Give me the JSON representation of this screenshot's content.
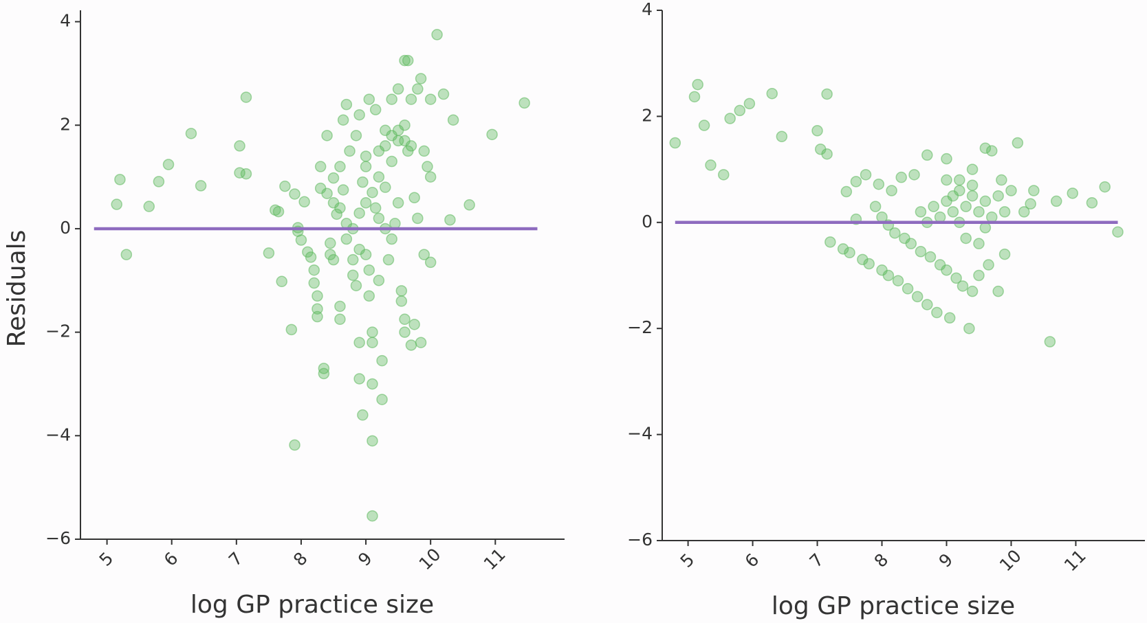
{
  "chart_data": [
    {
      "type": "scatter",
      "xlabel": "log GP practice size",
      "ylabel": "Residuals",
      "xlim": [
        4.59,
        12.07
      ],
      "ylim": [
        -6,
        4.22
      ],
      "xticks": [
        5,
        6,
        7,
        8,
        9,
        10,
        11
      ],
      "yticks": [
        {
          "value": -6,
          "label": "−6"
        },
        {
          "value": -4,
          "label": "−4"
        },
        {
          "value": -2,
          "label": "−2"
        },
        0,
        2,
        4
      ],
      "points": {
        "color": "#5cb85c",
        "x": [
          5.15,
          5.2,
          5.3,
          5.65,
          5.8,
          5.95,
          6.3,
          6.45,
          7.05,
          7.05,
          7.15,
          7.15,
          7.5,
          7.6,
          7.65,
          7.7,
          7.75,
          7.85,
          7.9,
          7.9,
          7.95,
          7.95,
          8.0,
          8.05,
          8.1,
          8.15,
          8.2,
          8.2,
          8.25,
          8.25,
          8.25,
          8.3,
          8.3,
          8.35,
          8.35,
          8.4,
          8.4,
          8.45,
          8.45,
          8.5,
          8.5,
          8.55,
          8.6,
          8.6,
          8.6,
          8.65,
          8.65,
          8.7,
          8.7,
          8.7,
          8.75,
          8.8,
          8.8,
          8.85,
          8.85,
          8.9,
          8.9,
          8.9,
          8.95,
          8.95,
          9.0,
          9.0,
          9.0,
          9.05,
          9.05,
          9.05,
          9.1,
          9.1,
          9.1,
          9.1,
          9.1,
          9.15,
          9.15,
          9.2,
          9.2,
          9.25,
          9.25,
          9.3,
          9.3,
          9.35,
          9.4,
          9.4,
          9.45,
          9.5,
          9.5,
          9.55,
          9.55,
          9.6,
          9.6,
          9.6,
          9.6,
          9.65,
          9.65,
          9.7,
          9.7,
          9.75,
          9.75,
          9.8,
          9.8,
          9.85,
          9.85,
          9.9,
          9.9,
          9.95,
          10.0,
          10.0,
          10.0,
          10.1,
          10.2,
          10.3,
          10.35,
          10.6,
          10.95,
          11.45,
          8.5,
          8.6,
          8.8,
          8.9,
          9.2,
          9.3,
          9.4,
          9.5,
          9.3,
          9.4,
          9.5,
          9.6,
          9.7,
          9.2,
          9.1,
          9.0,
          8.9
        ],
        "y": [
          0.47,
          0.95,
          -0.5,
          0.43,
          0.91,
          1.24,
          1.84,
          0.83,
          1.6,
          1.08,
          2.54,
          1.06,
          -0.47,
          0.36,
          0.33,
          -1.02,
          0.82,
          -1.95,
          -4.18,
          0.67,
          0.02,
          -0.05,
          -0.22,
          0.52,
          -0.45,
          -0.55,
          -0.8,
          -1.05,
          -1.3,
          -1.55,
          -1.7,
          1.2,
          0.78,
          -2.7,
          -2.8,
          1.8,
          0.68,
          -0.28,
          -0.5,
          0.98,
          -0.6,
          0.28,
          1.2,
          -1.5,
          -1.75,
          0.75,
          2.1,
          2.4,
          -0.2,
          0.1,
          1.5,
          -0.6,
          -0.9,
          -1.1,
          1.8,
          2.2,
          -2.2,
          -2.9,
          -3.6,
          0.9,
          1.4,
          -0.5,
          1.2,
          -0.8,
          -1.3,
          2.5,
          -2.0,
          -2.2,
          -3.0,
          -4.1,
          -5.55,
          2.3,
          0.4,
          -1.0,
          1.5,
          -2.55,
          -3.3,
          1.9,
          0.8,
          -0.6,
          1.3,
          2.5,
          0.1,
          1.7,
          2.7,
          -1.2,
          -1.4,
          3.25,
          2.0,
          -1.75,
          -2.0,
          3.25,
          1.5,
          -2.25,
          2.5,
          -1.85,
          0.6,
          2.7,
          0.2,
          2.9,
          -2.2,
          -0.5,
          1.5,
          1.2,
          2.5,
          -0.65,
          1.0,
          3.75,
          2.6,
          0.17,
          2.1,
          0.46,
          1.82,
          2.43,
          0.5,
          0.4,
          0.0,
          -0.4,
          0.2,
          0.0,
          -0.2,
          0.5,
          1.6,
          1.8,
          1.9,
          1.7,
          1.6,
          1.0,
          0.7,
          0.5,
          0.3
        ]
      },
      "line": {
        "color": "#8e6bbf",
        "x": [
          4.8,
          11.65
        ],
        "y": [
          0,
          0
        ]
      }
    },
    {
      "type": "scatter",
      "xlabel": "log GP practice size",
      "xlim": [
        4.6,
        12.07
      ],
      "ylim": [
        -6,
        4
      ],
      "xticks": [
        5,
        6,
        7,
        8,
        9,
        10,
        11
      ],
      "yticks": [
        {
          "value": -6,
          "label": "−6"
        },
        {
          "value": -4,
          "label": "−4"
        },
        {
          "value": -2,
          "label": "−2"
        },
        0,
        2,
        4
      ],
      "points": {
        "color": "#5cb85c",
        "x": [
          4.8,
          5.1,
          5.15,
          5.25,
          5.35,
          5.55,
          5.65,
          5.8,
          5.95,
          6.3,
          6.45,
          7.0,
          7.05,
          7.15,
          7.15,
          7.2,
          7.4,
          7.45,
          7.5,
          7.6,
          7.6,
          7.7,
          7.75,
          7.8,
          7.9,
          7.95,
          8.0,
          8.0,
          8.1,
          8.1,
          8.15,
          8.2,
          8.25,
          8.3,
          8.35,
          8.4,
          8.45,
          8.5,
          8.55,
          8.6,
          8.7,
          8.7,
          8.75,
          8.85,
          8.9,
          9.0,
          9.0,
          9.05,
          9.1,
          9.15,
          9.2,
          9.25,
          9.35,
          9.4,
          9.4,
          9.5,
          9.6,
          9.65,
          9.7,
          9.8,
          9.85,
          9.9,
          10.0,
          10.1,
          10.2,
          10.3,
          10.35,
          10.6,
          10.7,
          10.95,
          11.25,
          11.45,
          11.65,
          8.8,
          8.9,
          9.0,
          9.1,
          9.2,
          9.3,
          9.4,
          9.5,
          9.6,
          9.7,
          9.8,
          8.7,
          9.3,
          9.5,
          9.0,
          9.4,
          9.6,
          9.9,
          8.6,
          9.2
        ],
        "y": [
          1.5,
          2.37,
          2.6,
          1.83,
          1.08,
          0.9,
          1.96,
          2.11,
          2.24,
          2.43,
          1.62,
          1.73,
          1.38,
          2.42,
          1.29,
          -0.37,
          -0.5,
          0.58,
          -0.57,
          0.77,
          0.06,
          -0.7,
          0.9,
          -0.78,
          0.3,
          0.72,
          0.1,
          -0.9,
          -0.05,
          -1.0,
          0.6,
          -0.2,
          -1.1,
          0.85,
          -0.3,
          -1.25,
          -0.4,
          0.9,
          -1.4,
          -0.55,
          1.27,
          -1.55,
          -0.65,
          -1.7,
          -0.8,
          1.2,
          -0.9,
          -1.8,
          0.5,
          -1.05,
          0.8,
          -1.2,
          -2.0,
          -1.3,
          1.0,
          -1.0,
          1.4,
          -0.8,
          1.35,
          -1.3,
          0.8,
          -0.6,
          0.6,
          1.5,
          0.2,
          0.35,
          0.6,
          -2.25,
          0.4,
          0.55,
          0.37,
          0.67,
          -0.18,
          0.3,
          0.1,
          0.4,
          0.2,
          0.0,
          0.3,
          0.5,
          0.2,
          0.4,
          0.1,
          0.5,
          0.0,
          -0.3,
          -0.4,
          0.8,
          0.7,
          -0.1,
          0.2,
          0.2,
          0.6
        ]
      },
      "line": {
        "color": "#8e6bbf",
        "x": [
          4.8,
          11.65
        ],
        "y": [
          0,
          0
        ]
      }
    }
  ]
}
